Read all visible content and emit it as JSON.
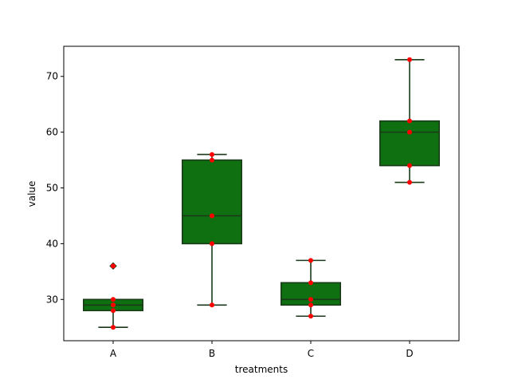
{
  "chart_data": {
    "type": "box",
    "title": "",
    "xlabel": "treatments",
    "ylabel": "value",
    "categories": [
      "A",
      "B",
      "C",
      "D"
    ],
    "ylim": [
      22.6,
      75.4
    ],
    "yticks": [
      30,
      40,
      50,
      60,
      70
    ],
    "boxes": [
      {
        "category": "A",
        "q1": 28,
        "median": 29,
        "q3": 30,
        "whisker_low": 25,
        "whisker_high": 30,
        "outliers": [
          36
        ]
      },
      {
        "category": "B",
        "q1": 40,
        "median": 45,
        "q3": 55,
        "whisker_low": 29,
        "whisker_high": 56,
        "outliers": []
      },
      {
        "category": "C",
        "q1": 29,
        "median": 30,
        "q3": 33,
        "whisker_low": 27,
        "whisker_high": 37,
        "outliers": []
      },
      {
        "category": "D",
        "q1": 54,
        "median": 60,
        "q3": 62,
        "whisker_low": 51,
        "whisker_high": 73,
        "outliers": []
      }
    ],
    "points": [
      {
        "category": "A",
        "values": [
          25,
          28,
          29,
          30,
          36
        ]
      },
      {
        "category": "B",
        "values": [
          29,
          40,
          45,
          55,
          56
        ]
      },
      {
        "category": "C",
        "values": [
          27,
          29,
          30,
          33,
          37
        ]
      },
      {
        "category": "D",
        "values": [
          51,
          54,
          60,
          62,
          73
        ]
      }
    ],
    "colors": {
      "box_fill": "#0e7010",
      "box_edge": "#1a3a1a",
      "points": "#ff0000",
      "axis": "#000000"
    },
    "grid": false,
    "legend": "none"
  }
}
